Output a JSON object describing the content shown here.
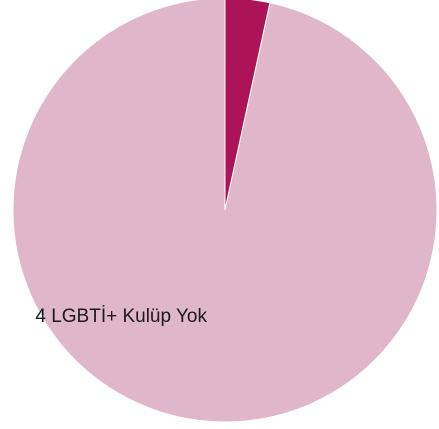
{
  "chart_data": {
    "type": "pie",
    "start_angle": "12 o'clock",
    "direction": "clockwise",
    "legend": "none",
    "slices": [
      {
        "label": "",
        "value": 3.4,
        "color": "#ad1457"
      },
      {
        "label": "4 LGBTİ+ Kulüp Yok",
        "value": 96.6,
        "color": "#e0b6ca"
      }
    ]
  }
}
